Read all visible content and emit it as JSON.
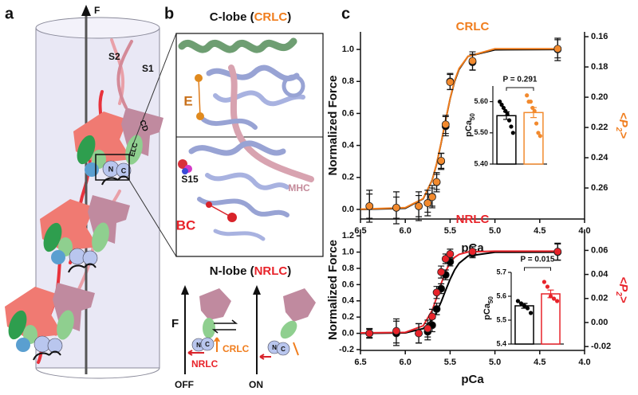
{
  "panel_a": {
    "label": "a",
    "force": "F",
    "s2": "S2",
    "s1": "S1",
    "cd": "CD",
    "elc": "ELC",
    "n": "N",
    "c": "C"
  },
  "panel_b": {
    "label": "b",
    "top_title": [
      "C-lobe (",
      "CRLC",
      ")"
    ],
    "bottom_title": [
      "N-lobe (",
      "NRLC",
      ")"
    ],
    "e": "E",
    "mhc": "MHC",
    "s15": "S15",
    "bc": "BC",
    "scheme": {
      "force": "F",
      "crlc": "CRLC",
      "nrlc": "NRLC",
      "off": "OFF",
      "on": "ON",
      "off_n": "N",
      "off_c": "C",
      "on_n": "N",
      "on_c": "C"
    }
  },
  "panel_c": {
    "label": "c"
  },
  "chart_data": [
    {
      "type": "scatter",
      "title": "CRLC",
      "title_color": "#f07d1d",
      "xlabel": "pCa",
      "ylabel": "Normalized Force",
      "y2label": [
        "<P",
        "2",
        ">"
      ],
      "y2label_color": "#f07d1d",
      "xlim": [
        6.5,
        4.0
      ],
      "xticks": [
        6.5,
        {
          "value": 6,
          "label": "6.0"
        },
        5.5,
        {
          "value": 5,
          "label": "5.0"
        },
        4.5,
        {
          "value": 4,
          "label": "4.0"
        }
      ],
      "ylim": [
        -0.06,
        1.11
      ],
      "yticks": [
        {
          "value": 0,
          "label": "0.0"
        },
        0.2,
        0.4,
        0.6,
        0.8,
        {
          "value": 1,
          "label": "1.0"
        }
      ],
      "y2lim": [
        0.2805,
        0.1568
      ],
      "y2ticks": [
        0.16,
        0.18,
        {
          "value": 0.2,
          "label": "0.20"
        },
        0.22,
        0.24,
        0.26
      ],
      "x": [
        6.4,
        6.1,
        5.85,
        5.75,
        5.7,
        5.65,
        5.6,
        5.55,
        5.5,
        5.25,
        4.3
      ],
      "series": [
        {
          "color": "#000000",
          "values": [
            0.02,
            0.01,
            0.02,
            0.04,
            0.08,
            0.17,
            0.3,
            0.52,
            0.8,
            0.92,
            1.0
          ],
          "errors": [
            0.1,
            0.1,
            0.09,
            0.08,
            0.07,
            0.06,
            0.05,
            0.06,
            0.05,
            0.05,
            0.07
          ]
        },
        {
          "color": "#f28a2e",
          "axis": "y2",
          "values": [
            0.272,
            0.273,
            0.272,
            0.27,
            0.266,
            0.256,
            0.242,
            0.218,
            0.19,
            0.176,
            0.168
          ],
          "errors": [
            0.008,
            0.007,
            0.007,
            0.006,
            0.006,
            0.005,
            0.005,
            0.006,
            0.005,
            0.006,
            0.006
          ]
        }
      ],
      "fits": [
        {
          "color": "#000000",
          "x": [
            6.5,
            6,
            5.8,
            5.7,
            5.65,
            5.6,
            5.55,
            5.5,
            5.45,
            5.4,
            5.3,
            5,
            4.3
          ],
          "values": [
            0,
            0.007,
            0.066,
            0.183,
            0.285,
            0.415,
            0.557,
            0.691,
            0.8,
            0.876,
            0.957,
            0.998,
            1
          ]
        },
        {
          "color": "#f07d1d",
          "axis": "y2",
          "x": [
            6.5,
            6,
            5.8,
            5.7,
            5.65,
            5.6,
            5.55,
            5.5,
            5.45,
            5.4,
            5.3,
            5,
            4.3
          ],
          "values": [
            0.274,
            0.273,
            0.267,
            0.255,
            0.244,
            0.23,
            0.215,
            0.201,
            0.189,
            0.181,
            0.173,
            0.168,
            0.168
          ]
        }
      ]
    },
    {
      "type": "scatter",
      "title": "NRLC",
      "title_color": "#e8232a",
      "xlabel": "pCa",
      "ylabel": "Normalized Force",
      "y2label": [
        "<P",
        "2",
        ">"
      ],
      "y2label_color": "#e8232a",
      "xlim": [
        6.5,
        4.0
      ],
      "xticks": [
        6.5,
        {
          "value": 6,
          "label": "6.0"
        },
        5.5,
        {
          "value": 5,
          "label": "5.0"
        },
        4.5,
        {
          "value": 4,
          "label": "4.0"
        }
      ],
      "ylim": [
        -0.21,
        1.28
      ],
      "yticks": [
        -0.2,
        {
          "value": 0,
          "label": "0.0"
        },
        0.2,
        0.4,
        0.6,
        0.8,
        {
          "value": 1,
          "label": "1.0"
        },
        1.2
      ],
      "y2lim": [
        -0.0232,
        0.0775
      ],
      "y2ticks": [
        -0.02,
        {
          "value": 0,
          "label": "0.00"
        },
        0.02,
        0.04,
        0.06
      ],
      "x": [
        6.4,
        6.1,
        5.85,
        5.75,
        5.7,
        5.65,
        5.6,
        5.55,
        5.5,
        5.25,
        4.3
      ],
      "series": [
        {
          "color": "#000000",
          "values": [
            0,
            0,
            0,
            0.02,
            0.1,
            0.3,
            0.55,
            0.72,
            0.88,
            0.98,
            1.0
          ],
          "errors": [
            0.05,
            0.15,
            0.12,
            0.1,
            0.08,
            0.07,
            0.06,
            0.06,
            0.05,
            0.05,
            0.1
          ]
        },
        {
          "color": "#e8232a",
          "axis": "y2",
          "values": [
            -0.009,
            -0.007,
            -0.009,
            -0.005,
            0.005,
            0.025,
            0.042,
            0.053,
            0.057,
            0.059,
            0.059
          ],
          "errors": [
            0.004,
            0.01,
            0.008,
            0.007,
            0.006,
            0.005,
            0.005,
            0.004,
            0.004,
            0.004,
            0.007
          ]
        }
      ],
      "fits": [
        {
          "color": "#000000",
          "x": [
            6.5,
            6,
            5.8,
            5.7,
            5.65,
            5.6,
            5.55,
            5.5,
            5.45,
            5.4,
            5.3,
            5,
            4.3
          ],
          "values": [
            0,
            0.006,
            0.059,
            0.166,
            0.262,
            0.387,
            0.529,
            0.666,
            0.78,
            0.863,
            0.952,
            0.998,
            1
          ]
        },
        {
          "color": "#e8232a",
          "axis": "y2",
          "x": [
            6.5,
            6,
            5.8,
            5.7,
            5.65,
            5.6,
            5.55,
            5.5,
            5.45,
            5.4,
            5.3,
            5,
            4.3
          ],
          "values": [
            -0.0086,
            -0.0082,
            -0.0027,
            0.0101,
            0.0207,
            0.0323,
            0.0425,
            0.0497,
            0.0542,
            0.0567,
            0.0587,
            0.0594,
            0.0594
          ]
        }
      ]
    },
    {
      "type": "bar",
      "ylabel": [
        "pCa",
        "50"
      ],
      "annotation": "P = 0.291",
      "ylim": [
        5.4,
        5.65
      ],
      "yticks": [
        {
          "value": 5.4,
          "label": "5.40"
        },
        {
          "value": 5.5,
          "label": "5.50"
        },
        {
          "value": 5.6,
          "label": "5.60"
        }
      ],
      "colors": [
        "#000000",
        "#f28a2e"
      ],
      "values": [
        5.555,
        5.565
      ],
      "errors": [
        0.012,
        0.016
      ],
      "points": [
        [
          5.6,
          5.59,
          5.58,
          5.57,
          5.56,
          5.54,
          5.52,
          5.5
        ],
        [
          5.62,
          5.6,
          5.6,
          5.58,
          5.57,
          5.53,
          5.5,
          5.49
        ]
      ]
    },
    {
      "type": "bar",
      "ylabel": [
        "pCa",
        "50"
      ],
      "annotation": "P = 0.015",
      "ylim": [
        5.4,
        5.7
      ],
      "yticks": [
        5.4,
        5.5,
        5.6,
        5.7
      ],
      "colors": [
        "#000000",
        "#e8232a"
      ],
      "values": [
        5.56,
        5.61
      ],
      "errors": [
        0.01,
        0.016
      ],
      "points": [
        [
          5.58,
          5.57,
          5.56,
          5.55,
          5.53
        ],
        [
          5.66,
          5.64,
          5.6,
          5.59,
          5.58
        ]
      ]
    }
  ]
}
